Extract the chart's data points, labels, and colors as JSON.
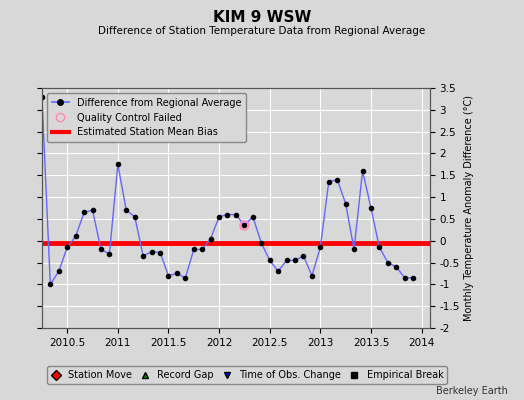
{
  "title": "KIM 9 WSW",
  "subtitle": "Difference of Station Temperature Data from Regional Average",
  "ylabel_right": "Monthly Temperature Anomaly Difference (°C)",
  "credit": "Berkeley Earth",
  "xlim": [
    2010.25,
    2014.08
  ],
  "ylim": [
    -2.0,
    3.5
  ],
  "yticks": [
    -2,
    -1.5,
    -1,
    -0.5,
    0,
    0.5,
    1,
    1.5,
    2,
    2.5,
    3,
    3.5
  ],
  "xticks": [
    2010.5,
    2011,
    2011.5,
    2012,
    2012.5,
    2013,
    2013.5,
    2014
  ],
  "xtick_labels": [
    "2010.5",
    "2011",
    "2011.5",
    "2012",
    "2012.5",
    "2013",
    "2013.5",
    "2014"
  ],
  "bias_value": -0.05,
  "line_color": "#6666ff",
  "line_marker_color": "#000000",
  "bias_color": "#ff0000",
  "background_color": "#d8d8d8",
  "plot_bg_color": "#d8d8d8",
  "grid_color": "#ffffff",
  "qc_failed_x": [
    2012.25
  ],
  "qc_failed_y": [
    0.35
  ],
  "x_data": [
    2010.25,
    2010.333,
    2010.417,
    2010.5,
    2010.583,
    2010.667,
    2010.75,
    2010.833,
    2010.917,
    2011.0,
    2011.083,
    2011.167,
    2011.25,
    2011.333,
    2011.417,
    2011.5,
    2011.583,
    2011.667,
    2011.75,
    2011.833,
    2011.917,
    2012.0,
    2012.083,
    2012.167,
    2012.25,
    2012.333,
    2012.417,
    2012.5,
    2012.583,
    2012.667,
    2012.75,
    2012.833,
    2012.917,
    2013.0,
    2013.083,
    2013.167,
    2013.25,
    2013.333,
    2013.417,
    2013.5,
    2013.583,
    2013.667,
    2013.75,
    2013.833,
    2013.917
  ],
  "y_data": [
    3.3,
    -1.0,
    -0.7,
    -0.15,
    0.1,
    0.65,
    0.7,
    -0.2,
    -0.3,
    1.75,
    0.7,
    0.55,
    -0.35,
    -0.25,
    -0.27,
    -0.8,
    -0.75,
    -0.85,
    -0.2,
    -0.2,
    0.05,
    0.55,
    0.6,
    0.6,
    0.35,
    0.55,
    -0.05,
    -0.45,
    -0.7,
    -0.45,
    -0.45,
    -0.35,
    -0.8,
    -0.15,
    1.35,
    1.4,
    0.85,
    -0.2,
    1.6,
    0.75,
    -0.15,
    -0.5,
    -0.6,
    -0.85,
    -0.85
  ]
}
